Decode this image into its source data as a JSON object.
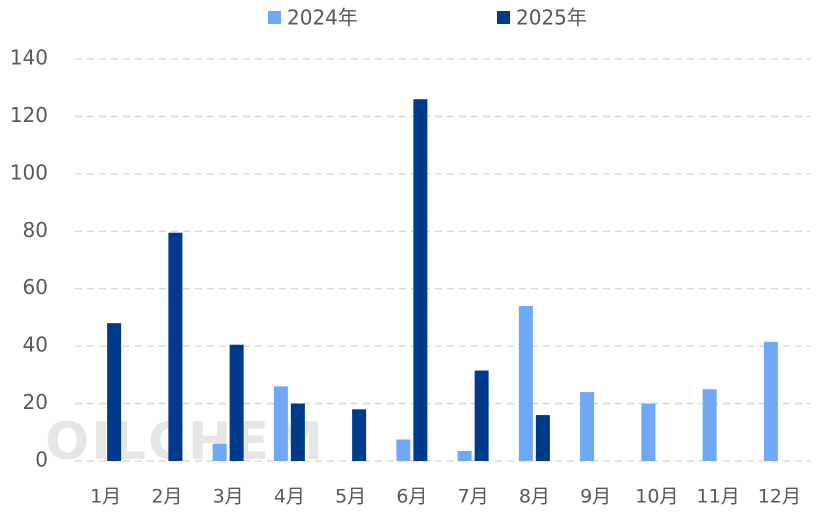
{
  "chart_data": {
    "type": "bar",
    "categories": [
      "1月",
      "2月",
      "3月",
      "4月",
      "5月",
      "6月",
      "7月",
      "8月",
      "9月",
      "10月",
      "11月",
      "12月"
    ],
    "series": [
      {
        "name": "2024年",
        "color": "#6fa8f7",
        "values": [
          null,
          null,
          6,
          26,
          null,
          7.5,
          3.5,
          54,
          24,
          20,
          25,
          41.5
        ]
      },
      {
        "name": "2025年",
        "color": "#003a8c",
        "values": [
          48,
          79.5,
          40.5,
          20,
          18,
          126,
          31.5,
          16,
          null,
          null,
          null,
          null
        ]
      }
    ],
    "ylim": [
      0,
      140
    ],
    "yticks": [
      0,
      20,
      40,
      60,
      80,
      100,
      120,
      140
    ],
    "grid": true,
    "legend": "top",
    "watermark": "OILCHEM"
  }
}
